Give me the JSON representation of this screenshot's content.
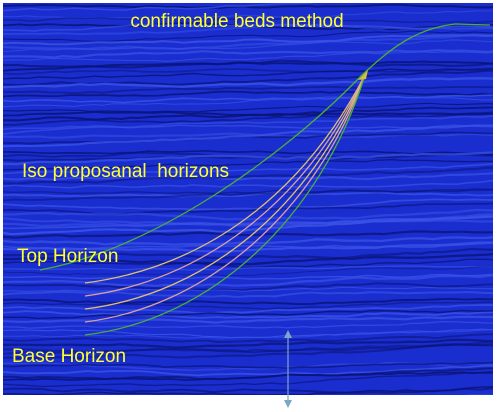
{
  "title": "confirmable beds method",
  "labels": {
    "iso": "Iso proposanal  horizons",
    "top": "Top Horizon",
    "base": "Base Horizon"
  }
}
